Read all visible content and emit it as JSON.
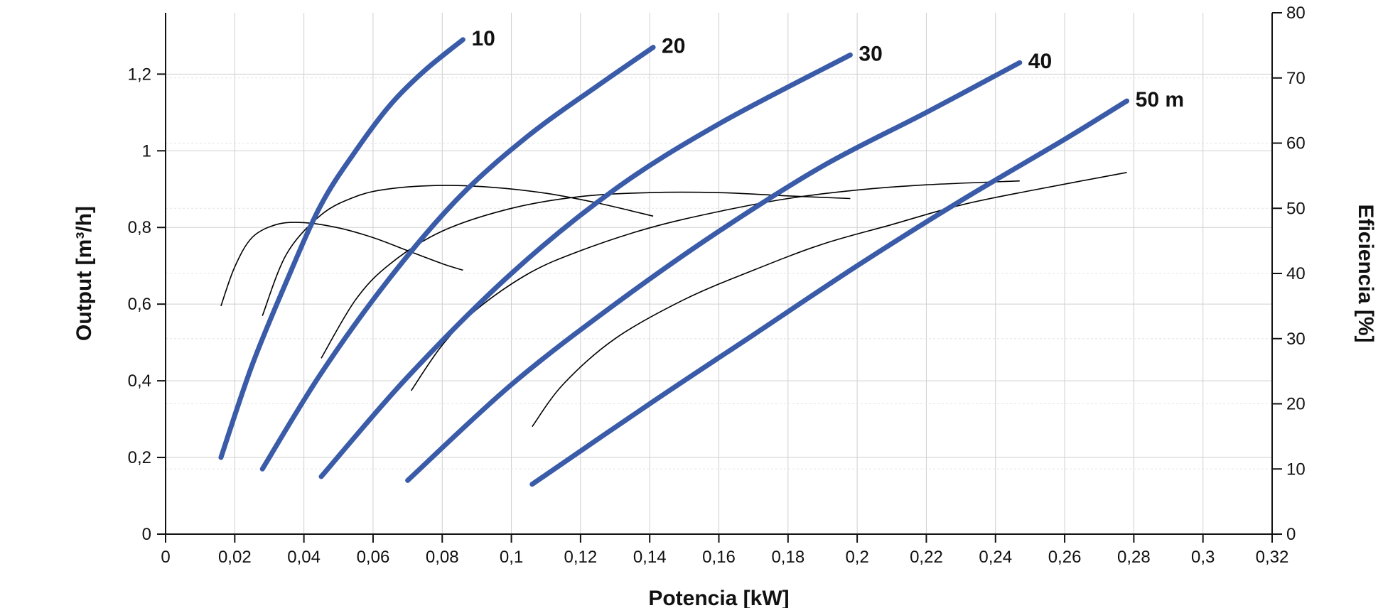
{
  "chart_data": {
    "type": "line",
    "title": "",
    "xlabel": "Potencia [kW]",
    "ylabel_left": "Output [m³/h]",
    "ylabel_right": "Eficiencia [%]",
    "xlim": [
      0,
      0.32
    ],
    "ylim_left": [
      0,
      1.36
    ],
    "ylim_right": [
      0,
      80
    ],
    "grid": true,
    "legend": "none",
    "x_ticks": [
      0,
      0.02,
      0.04,
      0.06,
      0.08,
      0.1,
      0.12,
      0.14,
      0.16,
      0.18,
      0.2,
      0.22,
      0.24,
      0.26,
      0.28,
      0.3,
      0.32
    ],
    "x_tick_labels": [
      "0",
      "0,02",
      "0,04",
      "0,06",
      "0,08",
      "0,1",
      "0,12",
      "0,14",
      "0,16",
      "0,18",
      "0,2",
      "0,22",
      "0,24",
      "0,26",
      "0,28",
      "0,3",
      "0,32"
    ],
    "y_left_ticks": [
      0,
      0.2,
      0.4,
      0.6,
      0.8,
      1,
      1.2
    ],
    "y_left_tick_labels": [
      "0",
      "0,2",
      "0,4",
      "0,6",
      "0,8",
      "1",
      "1,2"
    ],
    "y_right_ticks": [
      0,
      10,
      20,
      30,
      40,
      50,
      60,
      70,
      80
    ],
    "y_right_tick_labels": [
      "0",
      "10",
      "20",
      "30",
      "40",
      "50",
      "60",
      "70",
      "80"
    ],
    "series_color": "#3a5ba8",
    "efficiency_color": "#000000",
    "output_series": [
      {
        "label": "10",
        "x": [
          0.016,
          0.025,
          0.035,
          0.045,
          0.055,
          0.065,
          0.075,
          0.086
        ],
        "y": [
          0.2,
          0.44,
          0.66,
          0.86,
          1.0,
          1.12,
          1.21,
          1.29
        ]
      },
      {
        "label": "20",
        "x": [
          0.028,
          0.045,
          0.065,
          0.085,
          0.105,
          0.125,
          0.141
        ],
        "y": [
          0.17,
          0.42,
          0.67,
          0.88,
          1.04,
          1.17,
          1.27
        ]
      },
      {
        "label": "30",
        "x": [
          0.045,
          0.07,
          0.1,
          0.13,
          0.16,
          0.198
        ],
        "y": [
          0.15,
          0.41,
          0.68,
          0.9,
          1.07,
          1.25
        ]
      },
      {
        "label": "40",
        "x": [
          0.07,
          0.1,
          0.13,
          0.16,
          0.19,
          0.22,
          0.247
        ],
        "y": [
          0.14,
          0.39,
          0.6,
          0.79,
          0.96,
          1.1,
          1.23
        ]
      },
      {
        "label": "50 m",
        "x": [
          0.106,
          0.14,
          0.17,
          0.2,
          0.23,
          0.26,
          0.278
        ],
        "y": [
          0.13,
          0.34,
          0.52,
          0.7,
          0.87,
          1.03,
          1.13
        ]
      }
    ],
    "efficiency_series": [
      {
        "x": [
          0.016,
          0.02,
          0.025,
          0.032,
          0.04,
          0.05,
          0.06,
          0.07,
          0.08,
          0.086
        ],
        "y": [
          35,
          41,
          45.5,
          47.5,
          47.8,
          47,
          45.5,
          43.5,
          41.5,
          40.5
        ]
      },
      {
        "x": [
          0.028,
          0.035,
          0.045,
          0.055,
          0.065,
          0.08,
          0.095,
          0.11,
          0.125,
          0.141
        ],
        "y": [
          33.5,
          43,
          49,
          51.8,
          53,
          53.5,
          53.2,
          52.3,
          50.8,
          48.8
        ]
      },
      {
        "x": [
          0.045,
          0.055,
          0.065,
          0.08,
          0.1,
          0.12,
          0.14,
          0.16,
          0.18,
          0.198
        ],
        "y": [
          27,
          36,
          41.5,
          46.5,
          50,
          51.8,
          52.4,
          52.4,
          51.9,
          51.5
        ]
      },
      {
        "x": [
          0.071,
          0.08,
          0.09,
          0.105,
          0.12,
          0.14,
          0.16,
          0.18,
          0.2,
          0.22,
          0.247
        ],
        "y": [
          22,
          29,
          34.5,
          40,
          43.5,
          47,
          49.5,
          51.5,
          52.8,
          53.6,
          54.2
        ]
      },
      {
        "x": [
          0.106,
          0.115,
          0.13,
          0.15,
          0.17,
          0.19,
          0.21,
          0.23,
          0.25,
          0.278
        ],
        "y": [
          16.5,
          23,
          30,
          36,
          40.5,
          44.5,
          47.5,
          50.5,
          52.7,
          55.5
        ]
      }
    ]
  }
}
